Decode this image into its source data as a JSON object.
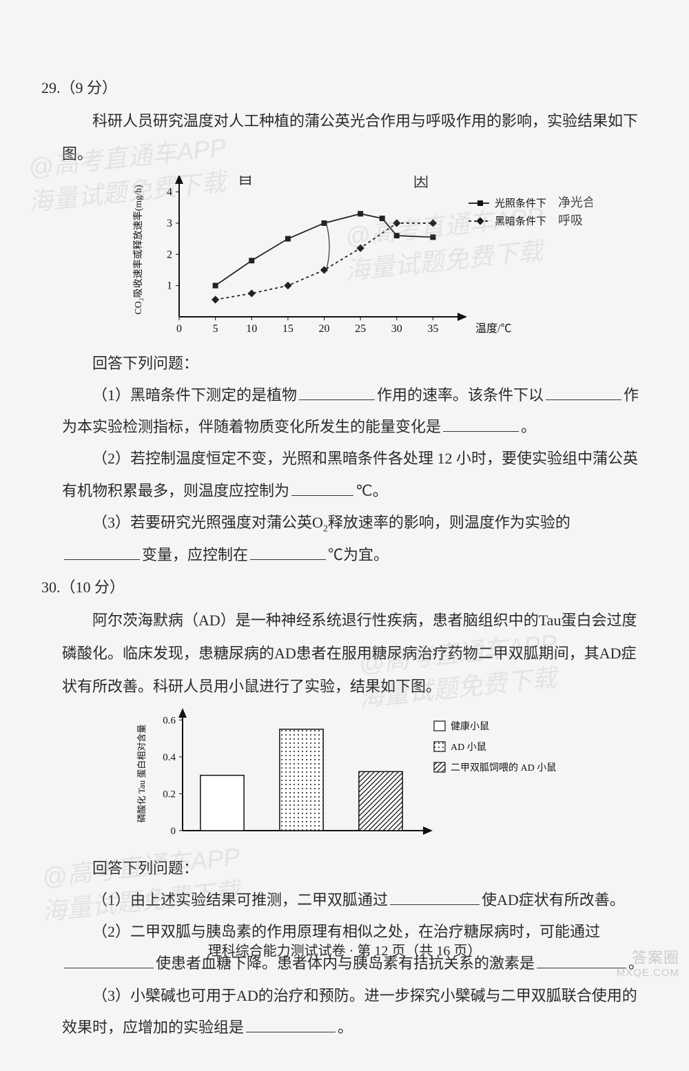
{
  "q29": {
    "num": "29.（9 分）",
    "intro": "科研人员研究温度对人工种植的蒲公英光合作用与呼吸作用的影响，实验结果如下图。",
    "answer_header": "回答下列问题：",
    "p1a": "（1）黑暗条件下测定的是植物",
    "p1b": "作用的速率。该条件下以",
    "p1c": "作为本实验检测指标，伴随着物质变化所发生的能量变化是",
    "p1d": "。",
    "p2a": "（2）若控制温度恒定不变，光照和黑暗条件各处理 12 小时，要使实验组中蒲公英有机物积累最多，则温度应控制为",
    "p2b": "℃。",
    "p3a": "（3）若要研究光照强度对蒲公英O",
    "p3a_sub": "2",
    "p3b": "释放速率的影响，则温度作为实验的",
    "p3c": "变量，应控制在",
    "p3d": "℃为宜。",
    "chart": {
      "type": "line",
      "y_axis_label": "CO₂吸收速率或释放速率(mg/h)",
      "x_axis_label": "温度/℃",
      "x_ticks": [
        0,
        5,
        10,
        15,
        20,
        25,
        30,
        35
      ],
      "y_ticks": [
        1,
        2,
        3,
        4
      ],
      "xlim": [
        0,
        38
      ],
      "ylim": [
        0,
        4.3
      ],
      "series": [
        {
          "name": "光照条件下",
          "marker": "square",
          "dash": "none",
          "color": "#222222",
          "points": [
            [
              5,
              1.0
            ],
            [
              10,
              1.8
            ],
            [
              15,
              2.5
            ],
            [
              20,
              3.0
            ],
            [
              25,
              3.3
            ],
            [
              28,
              3.15
            ],
            [
              30,
              2.6
            ],
            [
              35,
              2.55
            ]
          ]
        },
        {
          "name": "黑暗条件下",
          "marker": "diamond",
          "dash": "4,4",
          "color": "#222222",
          "points": [
            [
              5,
              0.55
            ],
            [
              10,
              0.75
            ],
            [
              15,
              1.0
            ],
            [
              20,
              1.5
            ],
            [
              25,
              2.2
            ],
            [
              30,
              3.0
            ],
            [
              35,
              3.0
            ]
          ]
        }
      ],
      "legend_notes": {
        "light": "净光合",
        "dark": "呼吸"
      },
      "background_color": "#f5f5f5",
      "axis_color": "#111111",
      "font_size_axis": 16
    },
    "handwritten": {
      "self": "自",
      "cause": "因",
      "net": "净光合",
      "resp": "呼吸"
    }
  },
  "q30": {
    "num": "30.（10 分）",
    "intro": "阿尔茨海默病（AD）是一种神经系统退行性疾病，患者脑组织中的Tau蛋白会过度磷酸化。临床发现，患糖尿病的AD患者在服用糖尿病治疗药物二甲双胍期间，其AD症状有所改善。科研人员用小鼠进行了实验，结果如下图。",
    "answer_header": "回答下列问题：",
    "p1a": "（1）由上述实验结果可推测，二甲双胍通过",
    "p1b": "使AD症状有所改善。",
    "p2a": "（2）二甲双胍与胰岛素的作用原理有相似之处，在治疗糖尿病时，可能通过",
    "p2b": "使患者血糖下降。患者体内与胰岛素有拮抗关系的激素是",
    "p2c": "。",
    "p3a": "（3）小檗碱也可用于AD的治疗和预防。进一步探究小檗碱与二甲双胍联合使用的效果时，应增加的实验组是",
    "p3b": "。",
    "chart": {
      "type": "bar",
      "y_axis_label": "磷酸化 Tau 蛋白相对含量",
      "y_ticks": [
        0,
        0.2,
        0.4,
        0.6
      ],
      "ylim": [
        0,
        0.62
      ],
      "bars": [
        {
          "label": "健康小鼠",
          "value": 0.3,
          "fill": "#ffffff",
          "pattern": "none"
        },
        {
          "label": "AD 小鼠",
          "value": 0.55,
          "fill": "#ffffff",
          "pattern": "dots"
        },
        {
          "label": "二甲双胍饲喂的 AD 小鼠",
          "value": 0.32,
          "fill": "#ffffff",
          "pattern": "hatch"
        }
      ],
      "bar_width": 0.55,
      "axis_color": "#111111",
      "background_color": "#f5f5f5",
      "font_size_axis": 15
    }
  },
  "footer": "理科综合能力测试试卷 · 第 12 页（共 16 页）",
  "watermarks": {
    "text1": "@高考直通车APP",
    "text2": "海量试题免费下载",
    "bottom1": "答案圈",
    "bottom2": "MXQE.COM"
  }
}
